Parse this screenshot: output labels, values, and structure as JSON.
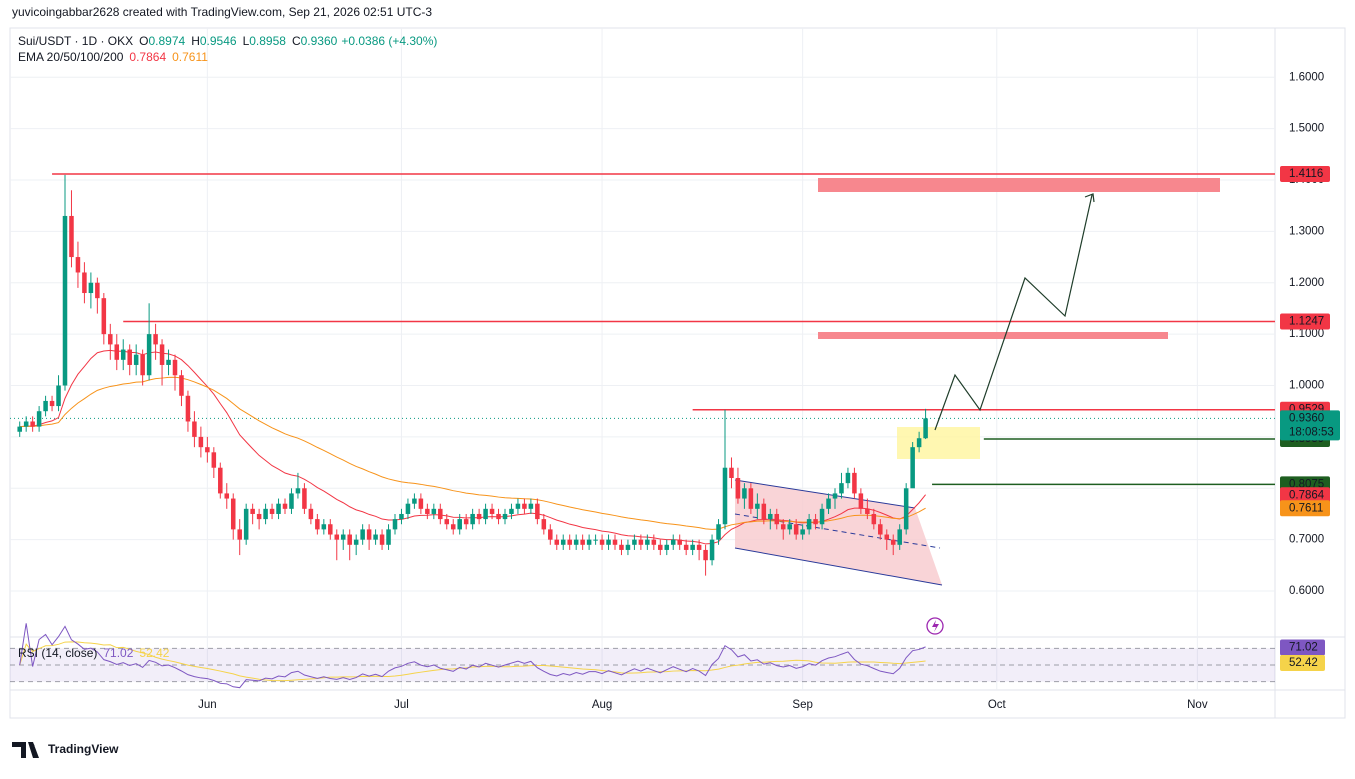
{
  "chart_data": {
    "type": "candlestick",
    "watermark": "yuvicoingabbar2628 created with TradingView.com, Sep 21, 2026 02:51 UTC-3",
    "symbol": "Sui/USDT · 1D · OKX",
    "ohlc_legend": [
      {
        "key": "O",
        "value": "0.8974"
      },
      {
        "key": "H",
        "value": "0.9546"
      },
      {
        "key": "L",
        "value": "0.8958"
      },
      {
        "key": "C",
        "value": "0.9360"
      }
    ],
    "change": "+0.0386 (+4.30%)",
    "ema_legend": {
      "label": "EMA 20/50/100/200",
      "values": [
        {
          "value": "0.7864",
          "color": "#f23645"
        },
        {
          "value": "0.7611",
          "color": "#f7931a"
        }
      ]
    },
    "up_color": "#089981",
    "down_color": "#f23645",
    "candles": [
      [
        0.91,
        0.93,
        0.9,
        0.92
      ],
      [
        0.92,
        0.94,
        0.91,
        0.93
      ],
      [
        0.93,
        0.94,
        0.91,
        0.92
      ],
      [
        0.92,
        0.96,
        0.91,
        0.95
      ],
      [
        0.95,
        0.98,
        0.94,
        0.97
      ],
      [
        0.97,
        0.98,
        0.95,
        0.96
      ],
      [
        0.96,
        1.02,
        0.95,
        1.0
      ],
      [
        1.0,
        1.41,
        0.99,
        1.33
      ],
      [
        1.33,
        1.38,
        1.23,
        1.25
      ],
      [
        1.25,
        1.28,
        1.19,
        1.22
      ],
      [
        1.22,
        1.24,
        1.16,
        1.18
      ],
      [
        1.18,
        1.22,
        1.15,
        1.2
      ],
      [
        1.2,
        1.21,
        1.14,
        1.17
      ],
      [
        1.17,
        1.18,
        1.08,
        1.1
      ],
      [
        1.1,
        1.12,
        1.05,
        1.08
      ],
      [
        1.08,
        1.1,
        1.03,
        1.05
      ],
      [
        1.05,
        1.09,
        1.03,
        1.07
      ],
      [
        1.07,
        1.08,
        1.02,
        1.04
      ],
      [
        1.04,
        1.08,
        1.02,
        1.06
      ],
      [
        1.06,
        1.07,
        1.0,
        1.02
      ],
      [
        1.02,
        1.16,
        1.01,
        1.1
      ],
      [
        1.1,
        1.12,
        1.05,
        1.08
      ],
      [
        1.08,
        1.09,
        1.0,
        1.04
      ],
      [
        1.04,
        1.07,
        1.02,
        1.05
      ],
      [
        1.05,
        1.06,
        0.99,
        1.02
      ],
      [
        1.02,
        1.03,
        0.96,
        0.98
      ],
      [
        0.98,
        0.99,
        0.91,
        0.93
      ],
      [
        0.93,
        0.95,
        0.88,
        0.9
      ],
      [
        0.9,
        0.92,
        0.86,
        0.88
      ],
      [
        0.88,
        0.9,
        0.85,
        0.87
      ],
      [
        0.87,
        0.88,
        0.82,
        0.84
      ],
      [
        0.84,
        0.85,
        0.78,
        0.79
      ],
      [
        0.79,
        0.81,
        0.76,
        0.78
      ],
      [
        0.78,
        0.79,
        0.7,
        0.72
      ],
      [
        0.72,
        0.74,
        0.67,
        0.7
      ],
      [
        0.7,
        0.77,
        0.69,
        0.76
      ],
      [
        0.76,
        0.77,
        0.73,
        0.75
      ],
      [
        0.75,
        0.76,
        0.72,
        0.74
      ],
      [
        0.74,
        0.77,
        0.73,
        0.76
      ],
      [
        0.76,
        0.77,
        0.74,
        0.75
      ],
      [
        0.75,
        0.78,
        0.74,
        0.77
      ],
      [
        0.77,
        0.78,
        0.75,
        0.76
      ],
      [
        0.76,
        0.8,
        0.75,
        0.79
      ],
      [
        0.79,
        0.83,
        0.78,
        0.8
      ],
      [
        0.8,
        0.81,
        0.75,
        0.76
      ],
      [
        0.76,
        0.77,
        0.73,
        0.74
      ],
      [
        0.74,
        0.75,
        0.71,
        0.72
      ],
      [
        0.72,
        0.74,
        0.71,
        0.73
      ],
      [
        0.73,
        0.74,
        0.7,
        0.71
      ],
      [
        0.71,
        0.72,
        0.66,
        0.7
      ],
      [
        0.7,
        0.72,
        0.68,
        0.71
      ],
      [
        0.71,
        0.72,
        0.66,
        0.69
      ],
      [
        0.69,
        0.71,
        0.67,
        0.7
      ],
      [
        0.7,
        0.73,
        0.69,
        0.72
      ],
      [
        0.72,
        0.73,
        0.68,
        0.7
      ],
      [
        0.7,
        0.72,
        0.69,
        0.71
      ],
      [
        0.71,
        0.72,
        0.68,
        0.69
      ],
      [
        0.69,
        0.73,
        0.68,
        0.72
      ],
      [
        0.72,
        0.75,
        0.71,
        0.74
      ],
      [
        0.74,
        0.76,
        0.73,
        0.75
      ],
      [
        0.75,
        0.78,
        0.74,
        0.77
      ],
      [
        0.77,
        0.79,
        0.76,
        0.78
      ],
      [
        0.78,
        0.79,
        0.75,
        0.76
      ],
      [
        0.76,
        0.77,
        0.74,
        0.75
      ],
      [
        0.75,
        0.77,
        0.74,
        0.76
      ],
      [
        0.76,
        0.77,
        0.73,
        0.74
      ],
      [
        0.74,
        0.75,
        0.72,
        0.73
      ],
      [
        0.73,
        0.74,
        0.71,
        0.72
      ],
      [
        0.72,
        0.75,
        0.71,
        0.74
      ],
      [
        0.74,
        0.75,
        0.72,
        0.73
      ],
      [
        0.73,
        0.76,
        0.72,
        0.75
      ],
      [
        0.75,
        0.76,
        0.73,
        0.74
      ],
      [
        0.74,
        0.77,
        0.73,
        0.76
      ],
      [
        0.76,
        0.77,
        0.74,
        0.75
      ],
      [
        0.75,
        0.76,
        0.73,
        0.74
      ],
      [
        0.74,
        0.76,
        0.73,
        0.75
      ],
      [
        0.75,
        0.77,
        0.74,
        0.76
      ],
      [
        0.76,
        0.78,
        0.75,
        0.77
      ],
      [
        0.77,
        0.78,
        0.75,
        0.76
      ],
      [
        0.76,
        0.78,
        0.75,
        0.77
      ],
      [
        0.77,
        0.78,
        0.73,
        0.74
      ],
      [
        0.74,
        0.75,
        0.71,
        0.72
      ],
      [
        0.72,
        0.73,
        0.69,
        0.7
      ],
      [
        0.7,
        0.71,
        0.68,
        0.69
      ],
      [
        0.69,
        0.71,
        0.68,
        0.7
      ],
      [
        0.7,
        0.71,
        0.68,
        0.69
      ],
      [
        0.69,
        0.71,
        0.68,
        0.7
      ],
      [
        0.7,
        0.71,
        0.68,
        0.69
      ],
      [
        0.69,
        0.71,
        0.68,
        0.7
      ],
      [
        0.7,
        0.71,
        0.69,
        0.7
      ],
      [
        0.7,
        0.71,
        0.68,
        0.69
      ],
      [
        0.69,
        0.71,
        0.68,
        0.7
      ],
      [
        0.7,
        0.71,
        0.68,
        0.69
      ],
      [
        0.69,
        0.7,
        0.67,
        0.68
      ],
      [
        0.68,
        0.7,
        0.67,
        0.69
      ],
      [
        0.69,
        0.71,
        0.68,
        0.7
      ],
      [
        0.7,
        0.71,
        0.68,
        0.69
      ],
      [
        0.69,
        0.71,
        0.68,
        0.7
      ],
      [
        0.7,
        0.71,
        0.68,
        0.69
      ],
      [
        0.69,
        0.7,
        0.67,
        0.68
      ],
      [
        0.68,
        0.7,
        0.67,
        0.69
      ],
      [
        0.69,
        0.71,
        0.68,
        0.7
      ],
      [
        0.7,
        0.71,
        0.68,
        0.69
      ],
      [
        0.69,
        0.7,
        0.67,
        0.68
      ],
      [
        0.68,
        0.7,
        0.67,
        0.69
      ],
      [
        0.69,
        0.7,
        0.66,
        0.68
      ],
      [
        0.68,
        0.69,
        0.63,
        0.66
      ],
      [
        0.66,
        0.71,
        0.65,
        0.7
      ],
      [
        0.7,
        0.74,
        0.69,
        0.73
      ],
      [
        0.73,
        0.9529,
        0.72,
        0.84
      ],
      [
        0.84,
        0.86,
        0.8,
        0.82
      ],
      [
        0.82,
        0.84,
        0.77,
        0.78
      ],
      [
        0.78,
        0.81,
        0.76,
        0.8
      ],
      [
        0.8,
        0.81,
        0.75,
        0.76
      ],
      [
        0.76,
        0.79,
        0.74,
        0.77
      ],
      [
        0.77,
        0.78,
        0.73,
        0.74
      ],
      [
        0.74,
        0.76,
        0.72,
        0.75
      ],
      [
        0.75,
        0.76,
        0.72,
        0.73
      ],
      [
        0.73,
        0.74,
        0.7,
        0.72
      ],
      [
        0.72,
        0.74,
        0.71,
        0.73
      ],
      [
        0.73,
        0.74,
        0.7,
        0.71
      ],
      [
        0.71,
        0.73,
        0.7,
        0.72
      ],
      [
        0.72,
        0.75,
        0.71,
        0.74
      ],
      [
        0.74,
        0.75,
        0.72,
        0.73
      ],
      [
        0.73,
        0.77,
        0.72,
        0.76
      ],
      [
        0.76,
        0.79,
        0.75,
        0.78
      ],
      [
        0.78,
        0.8,
        0.76,
        0.79
      ],
      [
        0.79,
        0.83,
        0.78,
        0.81
      ],
      [
        0.81,
        0.84,
        0.8,
        0.83
      ],
      [
        0.83,
        0.84,
        0.78,
        0.79
      ],
      [
        0.79,
        0.8,
        0.75,
        0.76
      ],
      [
        0.76,
        0.78,
        0.74,
        0.75
      ],
      [
        0.75,
        0.76,
        0.72,
        0.73
      ],
      [
        0.73,
        0.74,
        0.7,
        0.71
      ],
      [
        0.71,
        0.72,
        0.68,
        0.7
      ],
      [
        0.7,
        0.71,
        0.67,
        0.69
      ],
      [
        0.69,
        0.73,
        0.68,
        0.72
      ],
      [
        0.72,
        0.81,
        0.71,
        0.8
      ],
      [
        0.8,
        0.89,
        0.8075,
        0.88
      ],
      [
        0.88,
        0.91,
        0.87,
        0.8974
      ],
      [
        0.8974,
        0.9546,
        0.8958,
        0.936
      ]
    ],
    "xlim": [
      -1.5,
      194
    ],
    "xticks": [
      {
        "value": 29,
        "label": "Jun"
      },
      {
        "value": 59,
        "label": "Jul"
      },
      {
        "value": 90,
        "label": "Aug"
      },
      {
        "value": 121,
        "label": "Sep"
      },
      {
        "value": 151,
        "label": "Oct"
      },
      {
        "value": 182,
        "label": "Nov"
      }
    ],
    "ylim": [
      0.5125,
      1.6958
    ],
    "yticks": [
      {
        "value": 0.6,
        "label": "0.6000"
      },
      {
        "value": 0.7,
        "label": "0.7000"
      },
      {
        "value": 0.8,
        "label": "0.8000"
      },
      {
        "value": 0.9,
        "label": "0.9000"
      },
      {
        "value": 1.0,
        "label": "1.0000"
      },
      {
        "value": 1.1,
        "label": "1.1000"
      },
      {
        "value": 1.2,
        "label": "1.2000"
      },
      {
        "value": 1.3,
        "label": "1.3000"
      },
      {
        "value": 1.4,
        "label": "1.4000"
      },
      {
        "value": 1.5,
        "label": "1.5000"
      },
      {
        "value": 1.6,
        "label": "1.6000"
      }
    ],
    "grid": true,
    "levels": [
      {
        "value": 1.4116,
        "label": "1.4116",
        "color": "#f23645",
        "from": 5
      },
      {
        "value": 1.1247,
        "label": "1.1247",
        "color": "#f23645",
        "from": 16
      },
      {
        "value": 0.9529,
        "label": "0.9529",
        "color": "#f23645",
        "from": 104
      },
      {
        "value": 0.8959,
        "label": "0.8959",
        "color": "#1e5e20",
        "from": 149
      },
      {
        "value": 0.8075,
        "label": "0.8075",
        "color": "#1e5e20",
        "from": 141
      }
    ],
    "last_price": {
      "value": 0.936,
      "label": "0.9360",
      "countdown": "18:08:53",
      "color": "#089981"
    },
    "ema_labels": [
      {
        "value": 0.7864,
        "label": "0.7864",
        "color": "#f23645"
      },
      {
        "value": 0.7611,
        "label": "0.7611",
        "color": "#f7931a"
      }
    ],
    "rsi": {
      "label": "RSI (14, close)",
      "ylim": [
        20,
        80
      ],
      "bands": [
        30,
        50,
        70
      ],
      "values": [
        {
          "value": 71.02,
          "label": "71.02",
          "color": "#7e57c2"
        },
        {
          "value": 52.42,
          "label": "52.42",
          "color": "#f5d34a"
        }
      ]
    },
    "brand": "TradingView"
  }
}
